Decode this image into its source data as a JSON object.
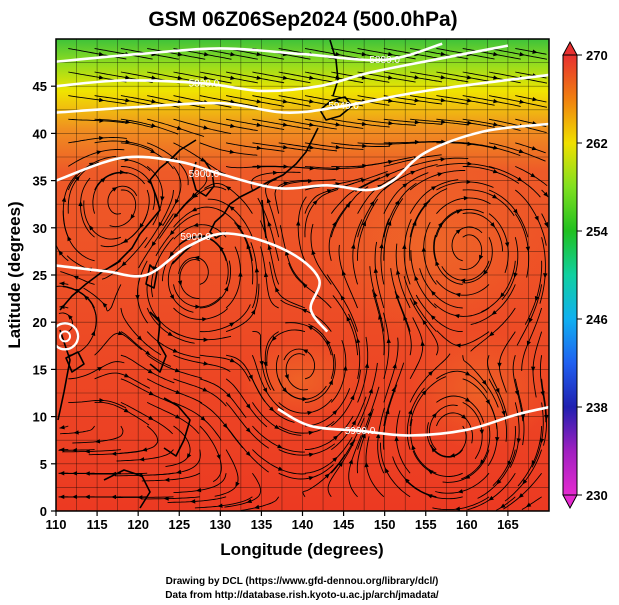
{
  "title": "GSM 06Z06Sep2024 (500.0hPa)",
  "axes": {
    "xlabel": "Longitude (degrees)",
    "ylabel": "Latitude (degrees)",
    "xlim": [
      110,
      170
    ],
    "ylim": [
      0,
      50
    ],
    "xticks": [
      "110",
      "115",
      "120",
      "125",
      "130",
      "135",
      "140",
      "145",
      "150",
      "155",
      "160",
      "165"
    ],
    "yticks": [
      "0",
      "5",
      "10",
      "15",
      "20",
      "25",
      "30",
      "35",
      "40",
      "45"
    ],
    "grid": true
  },
  "colorbar": {
    "ticks": [
      "230",
      "238",
      "246",
      "254",
      "262",
      "270"
    ],
    "range": [
      230,
      270
    ],
    "stops": [
      {
        "v": 230,
        "color": "#e52ad0"
      },
      {
        "v": 234,
        "color": "#a020c0"
      },
      {
        "v": 238,
        "color": "#2020b0"
      },
      {
        "v": 242,
        "color": "#2060f0"
      },
      {
        "v": 246,
        "color": "#10b0f0"
      },
      {
        "v": 250,
        "color": "#10d0a0"
      },
      {
        "v": 254,
        "color": "#20c020"
      },
      {
        "v": 258,
        "color": "#80e020"
      },
      {
        "v": 262,
        "color": "#f0e000"
      },
      {
        "v": 266,
        "color": "#f08010"
      },
      {
        "v": 270,
        "color": "#e83030"
      }
    ]
  },
  "contour_labels": [
    "5880.0",
    "5820.0",
    "5940.0",
    "5900.0",
    "5900.0",
    "5900.0"
  ],
  "contours": [
    {
      "label": 0,
      "label_at": [
        150,
        47.8
      ],
      "pts": [
        [
          110,
          47.6
        ],
        [
          120,
          48.4
        ],
        [
          130,
          49.0
        ],
        [
          140,
          48.4
        ],
        [
          150,
          47.8
        ],
        [
          157,
          49.5
        ]
      ]
    },
    {
      "label": 1,
      "label_at": [
        128,
        45.3
      ],
      "pts": [
        [
          110,
          45.0
        ],
        [
          118,
          45.6
        ],
        [
          128,
          45.3
        ],
        [
          135,
          44.5
        ],
        [
          142,
          45.0
        ],
        [
          148,
          46.4
        ],
        [
          156,
          47.8
        ],
        [
          165,
          49.3
        ]
      ]
    },
    {
      "label": 2,
      "label_at": [
        145,
        42.9
      ],
      "pts": [
        [
          110,
          42.2
        ],
        [
          120,
          42.8
        ],
        [
          130,
          43.2
        ],
        [
          138,
          42.2
        ],
        [
          145,
          42.9
        ],
        [
          155,
          44.5
        ],
        [
          170,
          46.2
        ]
      ]
    },
    {
      "label": 3,
      "label_at": [
        128,
        35.7
      ],
      "pts": [
        [
          110,
          35.0
        ],
        [
          118,
          37.4
        ],
        [
          125,
          37.0
        ],
        [
          130,
          35.7
        ],
        [
          137,
          34.2
        ],
        [
          143,
          34.5
        ],
        [
          148,
          34.0
        ],
        [
          151,
          35.0
        ],
        [
          155,
          38.0
        ],
        [
          162,
          40.2
        ],
        [
          170,
          41.0
        ]
      ]
    },
    {
      "label": 4,
      "label_at": [
        127,
        29.0
      ],
      "pts": [
        [
          110,
          26.0
        ],
        [
          116,
          25.4
        ],
        [
          121,
          25.0
        ],
        [
          126,
          28.0
        ],
        [
          131,
          29.4
        ],
        [
          138,
          27.6
        ],
        [
          142,
          24.6
        ],
        [
          141,
          21.4
        ],
        [
          143,
          19.0
        ]
      ]
    },
    {
      "label": 5,
      "label_at": [
        147,
        8.5
      ],
      "pts": [
        [
          137,
          10.8
        ],
        [
          141,
          9.0
        ],
        [
          147,
          8.5
        ],
        [
          153,
          8.0
        ],
        [
          160,
          8.6
        ],
        [
          166,
          10.2
        ],
        [
          170,
          11.0
        ]
      ]
    }
  ],
  "tc_marker": {
    "lon": 111.1,
    "lat": 18.5
  }
}
